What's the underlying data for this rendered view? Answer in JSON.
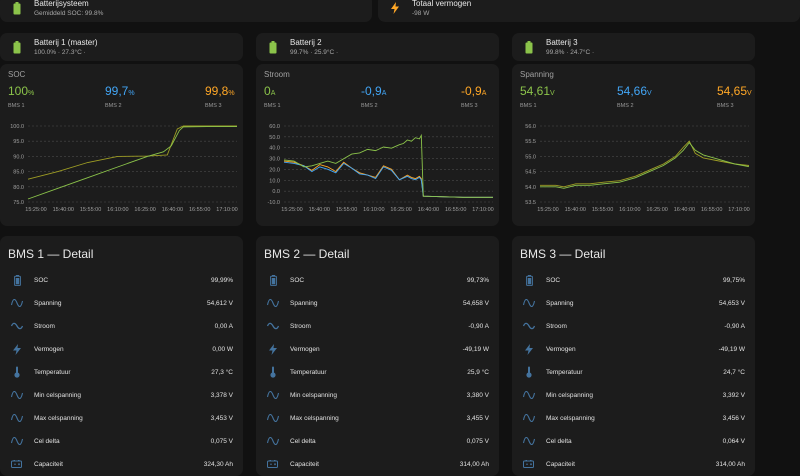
{
  "colors": {
    "green": "#8bc34a",
    "blue": "#42a5f5",
    "orange": "#ffa726",
    "olive": "#9e9d24",
    "icon": "#44739e",
    "bolt": "#ffa726"
  },
  "top": {
    "system": {
      "name": "Batterijsysteem",
      "secondary": "Gemiddeld SOC: 99.8%",
      "icon": "battery-icon"
    },
    "power": {
      "name": "Totaal vermogen",
      "secondary": "-98 W",
      "icon": "flash-icon"
    }
  },
  "batteries": [
    {
      "name": "Batterij 1 (master)",
      "secondary": "100.0% · 27.3°C ·"
    },
    {
      "name": "Batterij 2",
      "secondary": "99.7% · 25.9°C ·"
    },
    {
      "name": "Batterij 3",
      "secondary": "99.8% · 24.7°C ·"
    }
  ],
  "graphs": [
    {
      "title": "SOC",
      "stats": [
        {
          "value": "100",
          "unit": "%",
          "label": "BMS 1"
        },
        {
          "value": "99,7",
          "unit": "%",
          "label": "BMS 2"
        },
        {
          "value": "99,8",
          "unit": "%",
          "label": "BMS 3"
        }
      ]
    },
    {
      "title": "Stroom",
      "stats": [
        {
          "value": "0",
          "unit": "A",
          "label": "BMS 1"
        },
        {
          "value": "-0,9",
          "unit": "A",
          "label": "BMS 2"
        },
        {
          "value": "-0,9",
          "unit": "A",
          "label": "BMS 3"
        }
      ]
    },
    {
      "title": "Spanning",
      "stats": [
        {
          "value": "54,61",
          "unit": "V",
          "label": "BMS 1"
        },
        {
          "value": "54,66",
          "unit": "V",
          "label": "BMS 2"
        },
        {
          "value": "54,65",
          "unit": "V",
          "label": "BMS 3"
        }
      ]
    }
  ],
  "chart_data": [
    {
      "type": "line",
      "ylim": [
        75,
        100
      ],
      "yticks": [
        "100.0",
        "95.0",
        "90.0",
        "85.0",
        "80.0",
        "75.0"
      ],
      "xticks": [
        "15:25:00",
        "15:40:00",
        "15:55:00",
        "16:10:00",
        "16:25:00",
        "16:40:00",
        "16:55:00",
        "17:10:00"
      ],
      "series": [
        {
          "x": [
            0,
            15,
            30,
            45,
            60,
            70,
            75,
            78,
            90,
            105
          ],
          "y": [
            82.5,
            85,
            88,
            90,
            90.1,
            90.5,
            99,
            100,
            100,
            100
          ],
          "color": "olive"
        },
        {
          "x": [
            0,
            15,
            30,
            45,
            60,
            68,
            72,
            76,
            78,
            90,
            105
          ],
          "y": [
            76,
            79.5,
            83,
            86.5,
            90,
            91.5,
            93.5,
            98.5,
            99.7,
            99.8,
            99.8
          ],
          "color": "green"
        }
      ]
    },
    {
      "type": "line",
      "ylim": [
        -5,
        60
      ],
      "yticks": [
        "60.0",
        "50.0",
        "40.0",
        "30.0",
        "20.0",
        "10.0",
        "0.0",
        "-10.0"
      ],
      "xticks": [
        "15:25:00",
        "15:40:00",
        "15:55:00",
        "16:10:00",
        "16:25:00",
        "16:40:00",
        "16:55:00",
        "17:10:00"
      ],
      "series": [
        {
          "x": [
            0,
            5,
            10,
            14,
            18,
            22,
            26,
            30,
            34,
            38,
            42,
            46,
            50,
            54,
            58,
            62,
            64,
            66,
            68,
            69,
            70,
            90,
            105
          ],
          "y": [
            30,
            29,
            26,
            22,
            27,
            25,
            21,
            29,
            24,
            20,
            18,
            16,
            26,
            23,
            14,
            18,
            16,
            15,
            17,
            15,
            0,
            -1,
            -1
          ],
          "color": "orange"
        },
        {
          "x": [
            0,
            5,
            10,
            14,
            18,
            22,
            26,
            30,
            34,
            38,
            42,
            46,
            50,
            54,
            58,
            62,
            64,
            66,
            68,
            69,
            70,
            90,
            105
          ],
          "y": [
            29,
            28,
            26,
            21,
            25,
            23,
            20,
            28,
            24,
            19,
            18,
            15,
            25,
            22,
            14,
            17,
            15,
            14,
            16,
            14,
            0,
            -1,
            -1
          ],
          "color": "blue"
        },
        {
          "x": [
            0,
            5,
            10,
            14,
            18,
            22,
            26,
            30,
            34,
            38,
            42,
            46,
            50,
            54,
            58,
            60,
            62,
            64,
            66,
            68,
            69,
            70,
            90,
            105
          ],
          "y": [
            31,
            30,
            25,
            26,
            28,
            30,
            28,
            32,
            36,
            37,
            40,
            39,
            42,
            41,
            44,
            45,
            48,
            47,
            50,
            49,
            52,
            0,
            -1,
            -1
          ],
          "color": "green"
        }
      ]
    },
    {
      "type": "line",
      "ylim": [
        53.5,
        56
      ],
      "yticks": [
        "56.0",
        "55.5",
        "55.0",
        "54.5",
        "54.0",
        "53.5"
      ],
      "xticks": [
        "15:25:00",
        "15:40:00",
        "15:55:00",
        "16:10:00",
        "16:25:00",
        "16:40:00",
        "16:55:00",
        "17:10:00"
      ],
      "series": [
        {
          "x": [
            0,
            8,
            12,
            18,
            25,
            32,
            40,
            48,
            55,
            62,
            68,
            72,
            75,
            78,
            82,
            90,
            98,
            105
          ],
          "y": [
            54.05,
            54.05,
            54.0,
            54.1,
            54.1,
            54.15,
            54.2,
            54.35,
            54.55,
            54.75,
            55.0,
            55.3,
            55.5,
            55.1,
            54.95,
            54.85,
            54.75,
            54.7
          ],
          "color": "olive"
        },
        {
          "x": [
            0,
            8,
            12,
            18,
            25,
            32,
            40,
            48,
            55,
            62,
            68,
            72,
            75,
            78,
            82,
            90,
            98,
            105
          ],
          "y": [
            54.0,
            54.0,
            53.95,
            54.05,
            54.05,
            54.1,
            54.15,
            54.3,
            54.5,
            54.7,
            54.95,
            55.2,
            55.45,
            55.2,
            55.05,
            54.9,
            54.75,
            54.66
          ],
          "color": "green"
        }
      ]
    }
  ],
  "details": [
    {
      "title": "BMS 1 — Detail",
      "rows": [
        {
          "label": "SOC",
          "value": "99,99%",
          "icon": "battery-icon"
        },
        {
          "label": "Spanning",
          "value": "54,612 V",
          "icon": "sine-wave-icon"
        },
        {
          "label": "Stroom",
          "value": "0,00 A",
          "icon": "current-ac-icon"
        },
        {
          "label": "Vermogen",
          "value": "0,00 W",
          "icon": "flash-icon"
        },
        {
          "label": "Temperatuur",
          "value": "27,3 °C",
          "icon": "thermometer-icon"
        },
        {
          "label": "Min celspanning",
          "value": "3,378 V",
          "icon": "sine-wave-icon"
        },
        {
          "label": "Max celspanning",
          "value": "3,453 V",
          "icon": "sine-wave-icon"
        },
        {
          "label": "Cel delta",
          "value": "0,075 V",
          "icon": "sine-wave-icon"
        },
        {
          "label": "Capaciteit",
          "value": "324,30 Ah",
          "icon": "battery-charging-icon"
        }
      ]
    },
    {
      "title": "BMS 2 — Detail",
      "rows": [
        {
          "label": "SOC",
          "value": "99,73%",
          "icon": "battery-icon"
        },
        {
          "label": "Spanning",
          "value": "54,658 V",
          "icon": "sine-wave-icon"
        },
        {
          "label": "Stroom",
          "value": "-0,90 A",
          "icon": "current-ac-icon"
        },
        {
          "label": "Vermogen",
          "value": "-49,19 W",
          "icon": "flash-icon"
        },
        {
          "label": "Temperatuur",
          "value": "25,9 °C",
          "icon": "thermometer-icon"
        },
        {
          "label": "Min celspanning",
          "value": "3,380 V",
          "icon": "sine-wave-icon"
        },
        {
          "label": "Max celspanning",
          "value": "3,455 V",
          "icon": "sine-wave-icon"
        },
        {
          "label": "Cel delta",
          "value": "0,075 V",
          "icon": "sine-wave-icon"
        },
        {
          "label": "Capaciteit",
          "value": "314,00 Ah",
          "icon": "battery-charging-icon"
        }
      ]
    },
    {
      "title": "BMS 3 — Detail",
      "rows": [
        {
          "label": "SOC",
          "value": "99,75%",
          "icon": "battery-icon"
        },
        {
          "label": "Spanning",
          "value": "54,653 V",
          "icon": "sine-wave-icon"
        },
        {
          "label": "Stroom",
          "value": "-0,90 A",
          "icon": "current-ac-icon"
        },
        {
          "label": "Vermogen",
          "value": "-49,19 W",
          "icon": "flash-icon"
        },
        {
          "label": "Temperatuur",
          "value": "24,7 °C",
          "icon": "thermometer-icon"
        },
        {
          "label": "Min celspanning",
          "value": "3,392 V",
          "icon": "sine-wave-icon"
        },
        {
          "label": "Max celspanning",
          "value": "3,456 V",
          "icon": "sine-wave-icon"
        },
        {
          "label": "Cel delta",
          "value": "0,064 V",
          "icon": "sine-wave-icon"
        },
        {
          "label": "Capaciteit",
          "value": "314,00 Ah",
          "icon": "battery-charging-icon"
        }
      ]
    }
  ]
}
